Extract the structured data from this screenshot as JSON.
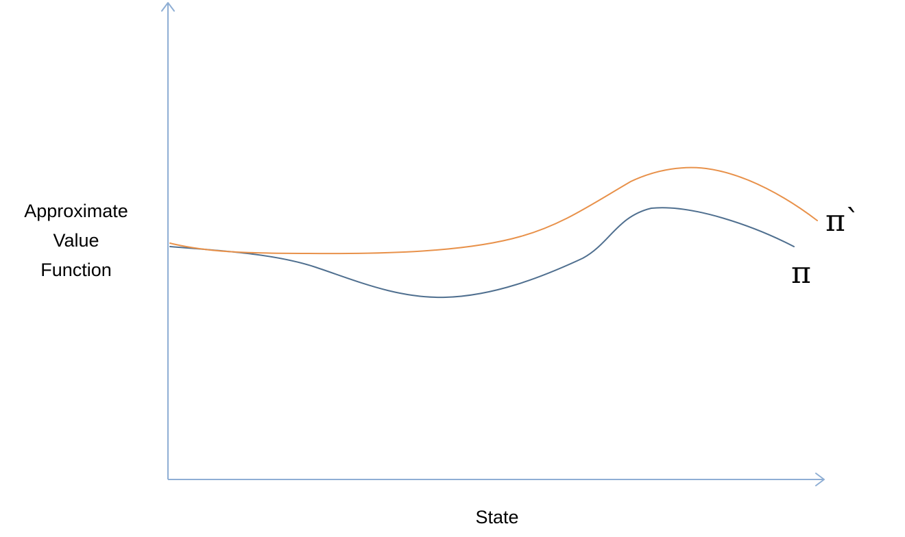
{
  "figure": {
    "y_axis_label_lines": [
      "Approximate",
      "Value",
      "Function"
    ],
    "x_axis_label": "State",
    "axis_color": "#8eaed4",
    "curves": [
      {
        "name": "π`",
        "color": "#e8914a"
      },
      {
        "name": "π",
        "color": "#4f6f8f"
      }
    ]
  }
}
